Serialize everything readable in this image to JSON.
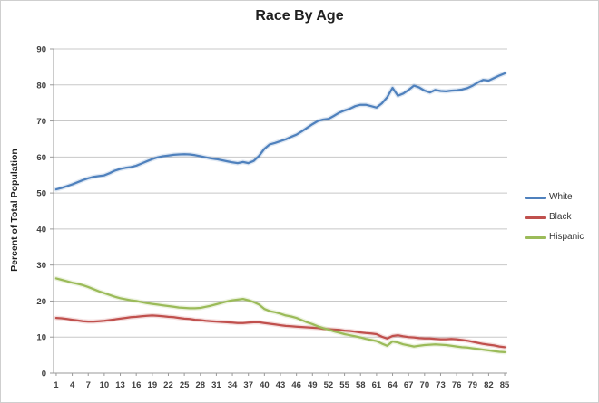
{
  "chart": {
    "title": "Race By Age",
    "y_axis_title": "Percent of Total Population"
  },
  "colors": {
    "background": "#FFFFFF",
    "border": "#CFCFCF",
    "gridline": "#C8C8C8",
    "axis": "#9A9A9A",
    "tick_text": "#404040",
    "title_text": "#1F1F1F"
  },
  "chart_data": {
    "type": "line",
    "title": "Race By Age",
    "xlabel": "",
    "ylabel": "Percent of Total Population",
    "x_start": 1,
    "x_end": 85,
    "x_step": 1,
    "x_tick_labels": [
      "1",
      "4",
      "7",
      "10",
      "13",
      "16",
      "19",
      "22",
      "25",
      "28",
      "31",
      "34",
      "37",
      "40",
      "43",
      "46",
      "49",
      "52",
      "55",
      "58",
      "61",
      "64",
      "67",
      "70",
      "73",
      "76",
      "79",
      "82",
      "85"
    ],
    "y_ticks": [
      0,
      10,
      20,
      30,
      40,
      50,
      60,
      70,
      80,
      90
    ],
    "ylim": [
      0,
      90
    ],
    "grid": true,
    "legend_position": "right",
    "series": [
      {
        "name": "White",
        "color": "#4F81BD",
        "values": [
          51.0,
          51.4,
          51.9,
          52.4,
          53.0,
          53.6,
          54.1,
          54.5,
          54.7,
          54.9,
          55.5,
          56.2,
          56.7,
          57.0,
          57.2,
          57.6,
          58.2,
          58.8,
          59.4,
          59.9,
          60.2,
          60.4,
          60.6,
          60.7,
          60.8,
          60.7,
          60.5,
          60.2,
          59.9,
          59.6,
          59.4,
          59.1,
          58.8,
          58.5,
          58.3,
          58.6,
          58.3,
          58.9,
          60.3,
          62.3,
          63.5,
          63.9,
          64.4,
          64.9,
          65.6,
          66.2,
          67.1,
          68.1,
          69.1,
          70.0,
          70.4,
          70.6,
          71.4,
          72.3,
          72.9,
          73.4,
          74.1,
          74.5,
          74.5,
          74.1,
          73.7,
          74.9,
          76.6,
          79.2,
          77.0,
          77.6,
          78.6,
          79.8,
          79.3,
          78.4,
          77.9,
          78.6,
          78.3,
          78.2,
          78.4,
          78.5,
          78.7,
          79.1,
          79.8,
          80.7,
          81.4,
          81.2,
          81.9,
          82.6,
          83.2
        ]
      },
      {
        "name": "Black",
        "color": "#C0504D",
        "values": [
          15.3,
          15.2,
          15.0,
          14.8,
          14.6,
          14.4,
          14.3,
          14.3,
          14.4,
          14.5,
          14.7,
          14.9,
          15.1,
          15.3,
          15.5,
          15.6,
          15.8,
          15.9,
          16.0,
          15.9,
          15.8,
          15.6,
          15.5,
          15.3,
          15.1,
          15.0,
          14.8,
          14.7,
          14.5,
          14.4,
          14.3,
          14.2,
          14.1,
          14.0,
          13.9,
          13.9,
          14.0,
          14.1,
          14.1,
          13.9,
          13.7,
          13.5,
          13.3,
          13.1,
          13.0,
          12.9,
          12.8,
          12.7,
          12.6,
          12.5,
          12.3,
          12.2,
          12.1,
          12.0,
          11.8,
          11.7,
          11.5,
          11.3,
          11.1,
          11.0,
          10.8,
          10.1,
          9.6,
          10.3,
          10.5,
          10.2,
          10.0,
          9.9,
          9.7,
          9.6,
          9.6,
          9.5,
          9.4,
          9.4,
          9.5,
          9.4,
          9.2,
          9.0,
          8.7,
          8.4,
          8.1,
          7.9,
          7.7,
          7.4,
          7.2
        ]
      },
      {
        "name": "Hispanic",
        "color": "#9BBB59",
        "values": [
          26.3,
          25.9,
          25.5,
          25.1,
          24.8,
          24.4,
          23.9,
          23.3,
          22.7,
          22.2,
          21.7,
          21.2,
          20.8,
          20.5,
          20.2,
          20.0,
          19.7,
          19.4,
          19.2,
          19.0,
          18.8,
          18.6,
          18.4,
          18.2,
          18.1,
          18.0,
          18.0,
          18.1,
          18.4,
          18.7,
          19.1,
          19.5,
          19.9,
          20.2,
          20.4,
          20.6,
          20.2,
          19.7,
          19.0,
          17.8,
          17.2,
          16.9,
          16.5,
          16.0,
          15.7,
          15.3,
          14.7,
          14.1,
          13.6,
          13.0,
          12.5,
          12.1,
          11.6,
          11.2,
          10.8,
          10.5,
          10.2,
          9.9,
          9.5,
          9.2,
          8.9,
          8.2,
          7.6,
          8.8,
          8.5,
          8.0,
          7.7,
          7.4,
          7.6,
          7.8,
          7.9,
          8.0,
          7.9,
          7.8,
          7.6,
          7.4,
          7.2,
          7.1,
          6.9,
          6.7,
          6.5,
          6.3,
          6.1,
          5.9,
          5.8
        ]
      }
    ]
  }
}
